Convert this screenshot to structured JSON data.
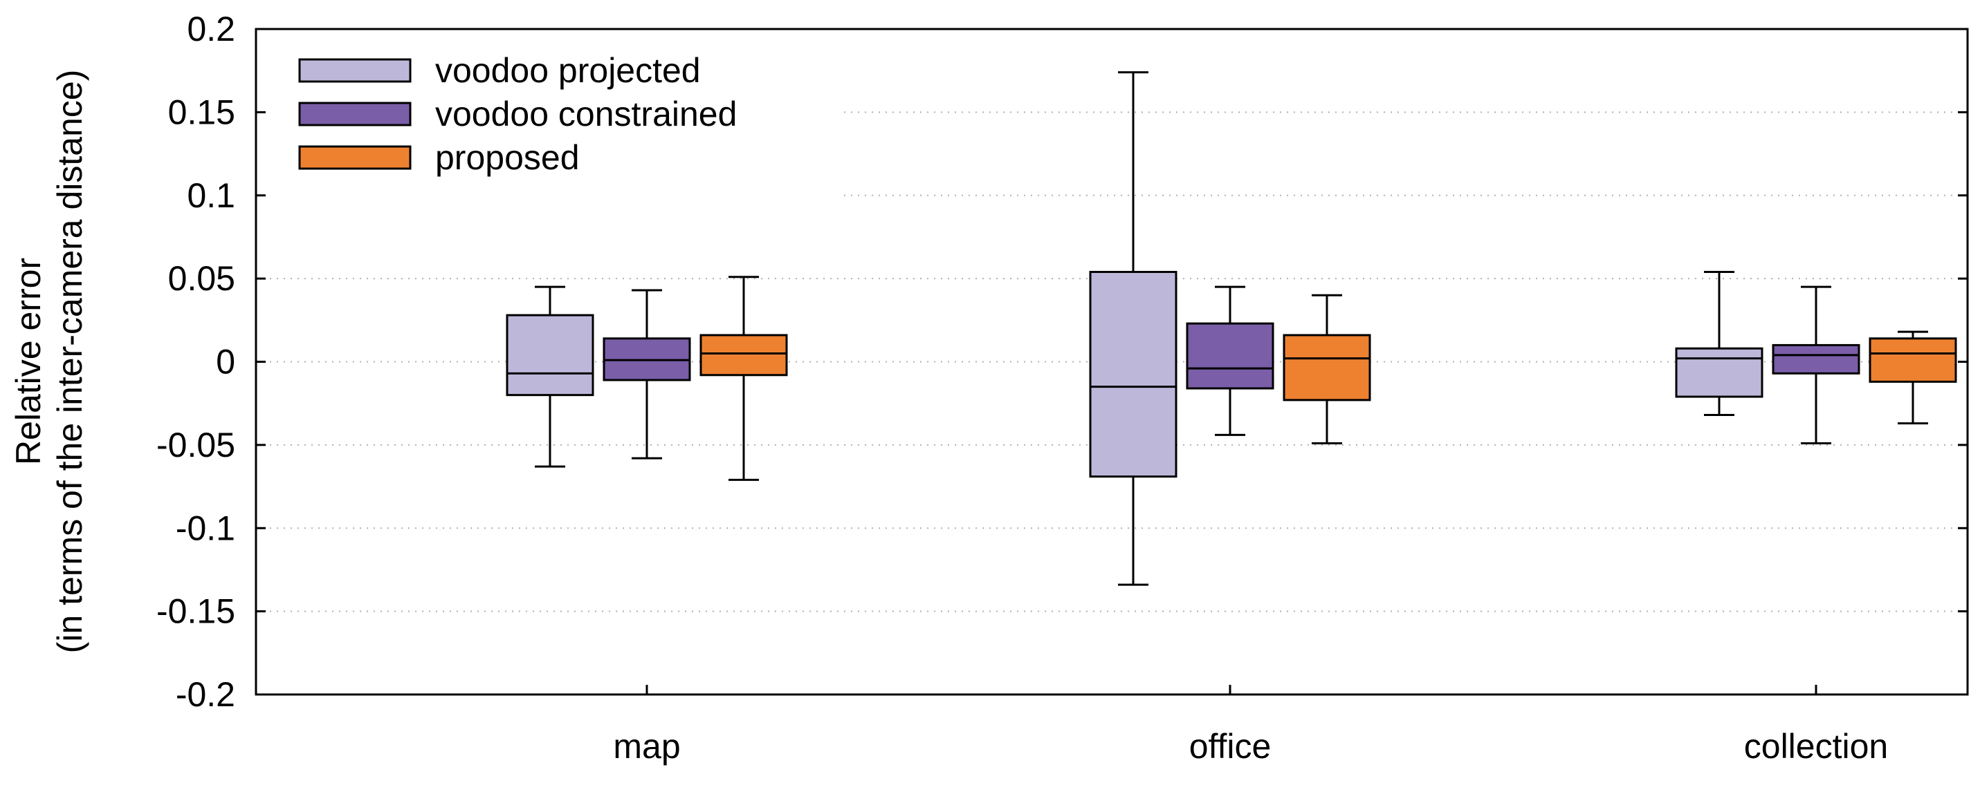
{
  "chart_data": {
    "type": "box",
    "ylabel_line1": "Relative error",
    "ylabel_line2": "(in terms of the inter-camera distance)",
    "ylim": [
      -0.2,
      0.2
    ],
    "y_ticks": [
      -0.2,
      -0.15,
      -0.1,
      -0.05,
      0,
      0.05,
      0.1,
      0.15,
      0.2
    ],
    "y_tick_labels": [
      "-0.2",
      "-0.15",
      "-0.1",
      "-0.05",
      "0",
      "0.05",
      "0.1",
      "0.15",
      "0.2"
    ],
    "grid": "horizontal dotted",
    "legend_position": "top-left",
    "categories": [
      "map",
      "office",
      "collection"
    ],
    "series": [
      {
        "name": "voodoo projected",
        "color": "#bdb8da",
        "boxes": [
          {
            "whisker_low": -0.063,
            "q1": -0.02,
            "median": -0.007,
            "q3": 0.028,
            "whisker_high": 0.045
          },
          {
            "whisker_low": -0.134,
            "q1": -0.069,
            "median": -0.015,
            "q3": 0.054,
            "whisker_high": 0.174
          },
          {
            "whisker_low": -0.032,
            "q1": -0.021,
            "median": 0.002,
            "q3": 0.008,
            "whisker_high": 0.054
          }
        ]
      },
      {
        "name": "voodoo constrained",
        "color": "#7a5ea8",
        "boxes": [
          {
            "whisker_low": -0.058,
            "q1": -0.011,
            "median": 0.001,
            "q3": 0.014,
            "whisker_high": 0.043
          },
          {
            "whisker_low": -0.044,
            "q1": -0.016,
            "median": -0.004,
            "q3": 0.023,
            "whisker_high": 0.045
          },
          {
            "whisker_low": -0.049,
            "q1": -0.007,
            "median": 0.004,
            "q3": 0.01,
            "whisker_high": 0.045
          }
        ]
      },
      {
        "name": "proposed",
        "color": "#ee8130",
        "boxes": [
          {
            "whisker_low": -0.071,
            "q1": -0.008,
            "median": 0.005,
            "q3": 0.016,
            "whisker_high": 0.051
          },
          {
            "whisker_low": -0.049,
            "q1": -0.023,
            "median": 0.002,
            "q3": 0.016,
            "whisker_high": 0.04
          },
          {
            "whisker_low": -0.037,
            "q1": -0.012,
            "median": 0.005,
            "q3": 0.014,
            "whisker_high": 0.018
          }
        ]
      }
    ]
  }
}
